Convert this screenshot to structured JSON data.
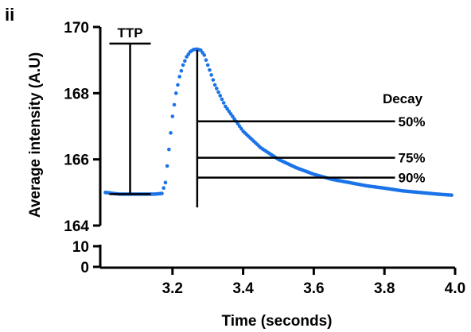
{
  "panel_label": "ii",
  "chart_data": {
    "type": "scatter",
    "title": "",
    "xlabel": "Time (seconds)",
    "ylabel": "Average intensity (A.U)",
    "xlim": [
      3.0,
      4.0
    ],
    "x_ticks": [
      3.2,
      3.4,
      3.6,
      3.8,
      4.0
    ],
    "y_ticks_upper": [
      164,
      166,
      168,
      170
    ],
    "y_ticks_lower": [
      0,
      10
    ],
    "ylim_upper": [
      164,
      170
    ],
    "ylim_lower": [
      0,
      10
    ],
    "y_axis_break": true,
    "grid": false,
    "marker_color": "#1a73e8",
    "series": [
      {
        "name": "",
        "points": [
          [
            3.01,
            165.0
          ],
          [
            3.05,
            164.95
          ],
          [
            3.1,
            164.95
          ],
          [
            3.15,
            164.95
          ],
          [
            3.17,
            164.97
          ],
          [
            3.18,
            165.3
          ],
          [
            3.19,
            166.3
          ],
          [
            3.2,
            167.3
          ],
          [
            3.21,
            168.0
          ],
          [
            3.22,
            168.5
          ],
          [
            3.23,
            168.85
          ],
          [
            3.24,
            169.1
          ],
          [
            3.25,
            169.25
          ],
          [
            3.26,
            169.32
          ],
          [
            3.27,
            169.33
          ],
          [
            3.28,
            169.3
          ],
          [
            3.29,
            169.15
          ],
          [
            3.3,
            168.85
          ],
          [
            3.32,
            168.25
          ],
          [
            3.35,
            167.6
          ],
          [
            3.4,
            166.85
          ],
          [
            3.45,
            166.35
          ],
          [
            3.5,
            166.0
          ],
          [
            3.55,
            165.75
          ],
          [
            3.6,
            165.55
          ],
          [
            3.65,
            165.4
          ],
          [
            3.7,
            165.3
          ],
          [
            3.75,
            165.2
          ],
          [
            3.8,
            165.13
          ],
          [
            3.85,
            165.05
          ],
          [
            3.9,
            165.0
          ],
          [
            3.95,
            164.95
          ],
          [
            3.99,
            164.92
          ]
        ]
      }
    ],
    "annotations": {
      "ttp": {
        "label": "TTP",
        "x_start": 3.08,
        "x_peak": 3.27,
        "y_top": 169.5,
        "y_baseline": 164.95
      },
      "decay_title": "Decay",
      "decay_lines": [
        {
          "label": "50%",
          "y": 167.15
        },
        {
          "label": "75%",
          "y": 166.05
        },
        {
          "label": "90%",
          "y": 165.45
        }
      ],
      "decay_line_x_start": 3.27,
      "decay_line_x_end": 3.83
    }
  }
}
